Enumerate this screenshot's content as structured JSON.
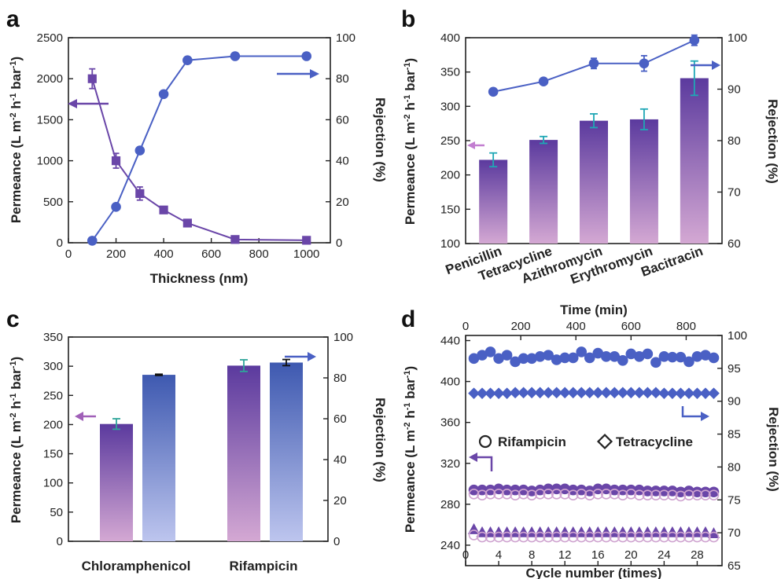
{
  "colors": {
    "blue": "#4a60c4",
    "purple": "#6a46a8",
    "purple_light": "#cfa4d0",
    "blue_light": "#b4bde8",
    "err_teal": "#1fa7b5",
    "err_green": "#2fa59a"
  },
  "chart_data": [
    {
      "panel": "a",
      "type": "line",
      "xlabel": "Thickness (nm)",
      "ylabel": "Permeance (L m-2 h-1 bar-1)",
      "y2label": "Rejection (%)",
      "xlim": [
        0,
        1100
      ],
      "ylim": [
        0,
        2500
      ],
      "y2lim": [
        0,
        100
      ],
      "xticks": [
        0,
        200,
        400,
        600,
        800,
        1000
      ],
      "yticks": [
        0,
        500,
        1000,
        1500,
        2000,
        2500
      ],
      "y2ticks": [
        0,
        20,
        40,
        60,
        80,
        100
      ],
      "grid": false,
      "series": [
        {
          "axis": "left",
          "marker": "square",
          "color": "purple",
          "x": [
            100,
            200,
            300,
            400,
            500,
            700,
            1000
          ],
          "values": [
            2000,
            1000,
            600,
            400,
            240,
            40,
            30
          ],
          "errors": [
            120,
            90,
            80,
            40,
            30,
            20,
            15
          ]
        },
        {
          "axis": "right",
          "marker": "circle",
          "color": "blue",
          "x": [
            100,
            200,
            300,
            400,
            500,
            700,
            1000
          ],
          "values": [
            1,
            17.5,
            45,
            72.5,
            89,
            91,
            91
          ]
        }
      ]
    },
    {
      "panel": "b",
      "type": "bar",
      "ylabel": "Permeance (L m-2 h-1 bar-1)",
      "y2label": "Rejection (%)",
      "categories": [
        "Penicillin",
        "Tetracycline",
        "Azithromycin",
        "Erythromycin",
        "Bacitracin"
      ],
      "ylim": [
        100,
        400
      ],
      "y2lim": [
        60,
        100
      ],
      "yticks": [
        100,
        150,
        200,
        250,
        300,
        350,
        400
      ],
      "y2ticks": [
        60,
        70,
        80,
        90,
        100
      ],
      "grid": false,
      "series": [
        {
          "axis": "left",
          "kind": "bar",
          "values": [
            222,
            251,
            279,
            281,
            341
          ],
          "errors": [
            10,
            5,
            10,
            15,
            25
          ]
        },
        {
          "axis": "right",
          "kind": "line",
          "marker": "circle",
          "values": [
            89.5,
            91.5,
            95,
            95,
            99.5
          ],
          "errors": [
            0.5,
            0.6,
            1.0,
            1.5,
            1.0
          ]
        }
      ]
    },
    {
      "panel": "c",
      "type": "bar",
      "ylabel": "Permeance (L m-2 h-1 bar-1)",
      "y2label": "Rejection (%)",
      "categories": [
        "Chloramphenicol",
        "Rifampicin"
      ],
      "ylim": [
        0,
        350
      ],
      "y2lim": [
        0,
        100
      ],
      "yticks": [
        0,
        50,
        100,
        150,
        200,
        250,
        300,
        350
      ],
      "y2ticks": [
        0,
        20,
        40,
        60,
        80,
        100
      ],
      "grid": false,
      "series": [
        {
          "axis": "left",
          "kind": "bar",
          "color": "purple",
          "values": [
            201,
            301
          ],
          "errors": [
            9,
            10
          ]
        },
        {
          "axis": "right",
          "kind": "bar",
          "color": "blue",
          "values": [
            81.5,
            87.5
          ],
          "errors": [
            0.3,
            1.5
          ]
        }
      ]
    },
    {
      "panel": "d",
      "type": "scatter",
      "xlabel": "Cycle number (times)",
      "x2label": "Time (min)",
      "ylabel": "Permeance (L m-2 h-1 bar-1)",
      "y2label": "Rejection (%)",
      "xlim": [
        0,
        31
      ],
      "x2lim": [
        0,
        930
      ],
      "ylim": [
        220,
        445
      ],
      "y2lim": [
        65,
        100
      ],
      "xticks": [
        0,
        4,
        8,
        12,
        16,
        20,
        24,
        28
      ],
      "x2ticks": [
        0,
        200,
        400,
        600,
        800
      ],
      "yticks": [
        240,
        280,
        320,
        360,
        400,
        440
      ],
      "y2ticks": [
        65,
        70,
        75,
        80,
        85,
        90,
        95,
        100
      ],
      "grid": false,
      "legend": {
        "placement": "center-right",
        "entries": [
          "Rifampicin",
          "Tetracycline"
        ]
      },
      "series": [
        {
          "axis": "right",
          "marker": "circle",
          "filled": true,
          "color": "blue",
          "x": [
            1,
            2,
            3,
            4,
            5,
            6,
            7,
            8,
            9,
            10,
            11,
            12,
            13,
            14,
            15,
            16,
            17,
            18,
            19,
            20,
            21,
            22,
            23,
            24,
            25,
            26,
            27,
            28,
            29,
            30
          ],
          "values": [
            96.5,
            97,
            97.5,
            96.5,
            97,
            96,
            96.5,
            96.5,
            96.8,
            97,
            96.3,
            96.6,
            96.6,
            97.5,
            96.6,
            97.3,
            96.8,
            96.8,
            96.2,
            97.2,
            96.8,
            97.2,
            95.9,
            96.8,
            96.7,
            96.7,
            96,
            96.8,
            97,
            96.6
          ]
        },
        {
          "axis": "right",
          "marker": "diamond",
          "filled": true,
          "color": "blue",
          "x": [
            1,
            2,
            3,
            4,
            5,
            6,
            7,
            8,
            9,
            10,
            11,
            12,
            13,
            14,
            15,
            16,
            17,
            18,
            19,
            20,
            21,
            22,
            23,
            24,
            25,
            26,
            27,
            28,
            29,
            30
          ],
          "values": [
            91.2,
            91.2,
            91.2,
            91.2,
            91.2,
            91.3,
            91.3,
            91.3,
            91.3,
            91.3,
            91.3,
            91.3,
            91.3,
            91.3,
            91.3,
            91.3,
            91.3,
            91.3,
            91.3,
            91.3,
            91.3,
            91.3,
            91.3,
            91.2,
            91.2,
            91.2,
            91.2,
            91.2,
            91.2,
            91.2
          ]
        },
        {
          "axis": "left",
          "marker": "circle",
          "filled": true,
          "color": "purple",
          "x": [
            1,
            2,
            3,
            4,
            5,
            6,
            7,
            8,
            9,
            10,
            11,
            12,
            13,
            14,
            15,
            16,
            17,
            18,
            19,
            20,
            21,
            22,
            23,
            24,
            25,
            26,
            27,
            28,
            29,
            30
          ],
          "values": [
            294,
            294,
            294,
            295,
            294,
            294,
            294,
            293,
            294,
            295,
            295,
            295,
            294,
            294,
            293,
            295,
            295,
            294,
            294,
            294,
            294,
            293,
            293,
            293,
            293,
            292,
            293,
            292,
            292,
            292
          ]
        },
        {
          "axis": "left",
          "marker": "circle",
          "filled": false,
          "color": "purple_light",
          "x": [
            1,
            2,
            3,
            4,
            5,
            6,
            7,
            8,
            9,
            10,
            11,
            12,
            13,
            14,
            15,
            16,
            17,
            18,
            19,
            20,
            21,
            22,
            23,
            24,
            25,
            26,
            27,
            28,
            29,
            30
          ],
          "values": [
            290,
            289,
            290,
            290,
            290,
            289,
            290,
            289,
            290,
            290,
            290,
            290,
            289,
            290,
            289,
            290,
            290,
            290,
            289,
            290,
            289,
            289,
            289,
            289,
            289,
            288,
            289,
            289,
            289,
            289
          ]
        },
        {
          "axis": "left",
          "marker": "triangle",
          "filled": true,
          "color": "purple",
          "x": [
            1,
            2,
            3,
            4,
            5,
            6,
            7,
            8,
            9,
            10,
            11,
            12,
            13,
            14,
            15,
            16,
            17,
            18,
            19,
            20,
            21,
            22,
            23,
            24,
            25,
            26,
            27,
            28,
            29,
            30
          ],
          "values": [
            255,
            252,
            252,
            252,
            252,
            252,
            252,
            252,
            252,
            252,
            252,
            252,
            252,
            252,
            252,
            252,
            252,
            252,
            252,
            252,
            252,
            252,
            252,
            252,
            252,
            252,
            252,
            252,
            252,
            251
          ]
        },
        {
          "axis": "left",
          "marker": "circle",
          "filled": false,
          "color": "purple_light",
          "x": [
            1,
            2,
            3,
            4,
            5,
            6,
            7,
            8,
            9,
            10,
            11,
            12,
            13,
            14,
            15,
            16,
            17,
            18,
            19,
            20,
            21,
            22,
            23,
            24,
            25,
            26,
            27,
            28,
            29,
            30
          ],
          "values": [
            250,
            248,
            248,
            248,
            248,
            248,
            248,
            248,
            248,
            248,
            248,
            248,
            248,
            248,
            248,
            248,
            248,
            248,
            248,
            248,
            248,
            248,
            248,
            248,
            248,
            248,
            248,
            248,
            248,
            248
          ]
        }
      ]
    }
  ],
  "labels": {
    "a": {
      "letter": "a",
      "ylab_main": "Permeance (L m",
      "ylab_sup1": "-2",
      "ylab_mid": " h",
      "ylab_sup2": "-1",
      "ylab_mid2": " bar",
      "ylab_sup3": "-1",
      "ylab_end": ")",
      "y2label": "Rejection (%)",
      "xlabel": "Thickness (nm)"
    },
    "b": {
      "letter": "b",
      "ylab_main": "Permeance (L m",
      "ylab_sup1": "-2",
      "ylab_mid": " h",
      "ylab_sup2": "-1",
      "ylab_mid2": " bar",
      "ylab_sup3": "-1",
      "ylab_end": ")",
      "y2label": "Rejection (%)"
    },
    "c": {
      "letter": "c",
      "ylab_main": "Permeance (L m",
      "ylab_sup1": "-2",
      "ylab_mid": " h",
      "ylab_sup2": "-1",
      "ylab_mid2": " bar",
      "ylab_sup3": "-1",
      "ylab_end": ")",
      "y2label": "Rejection (%)"
    },
    "d": {
      "letter": "d",
      "ylab_main": "Permeance (L m",
      "ylab_sup1": "-2",
      "ylab_mid": " h",
      "ylab_sup2": "-1",
      "ylab_mid2": " bar",
      "ylab_sup3": "-1",
      "ylab_end": ")",
      "y2label": "Rejection (%)",
      "xlabel": "Cycle number (times)",
      "x2label": "Time (min)",
      "legend_rif": "Rifampicin",
      "legend_tet": "Tetracycline"
    }
  }
}
